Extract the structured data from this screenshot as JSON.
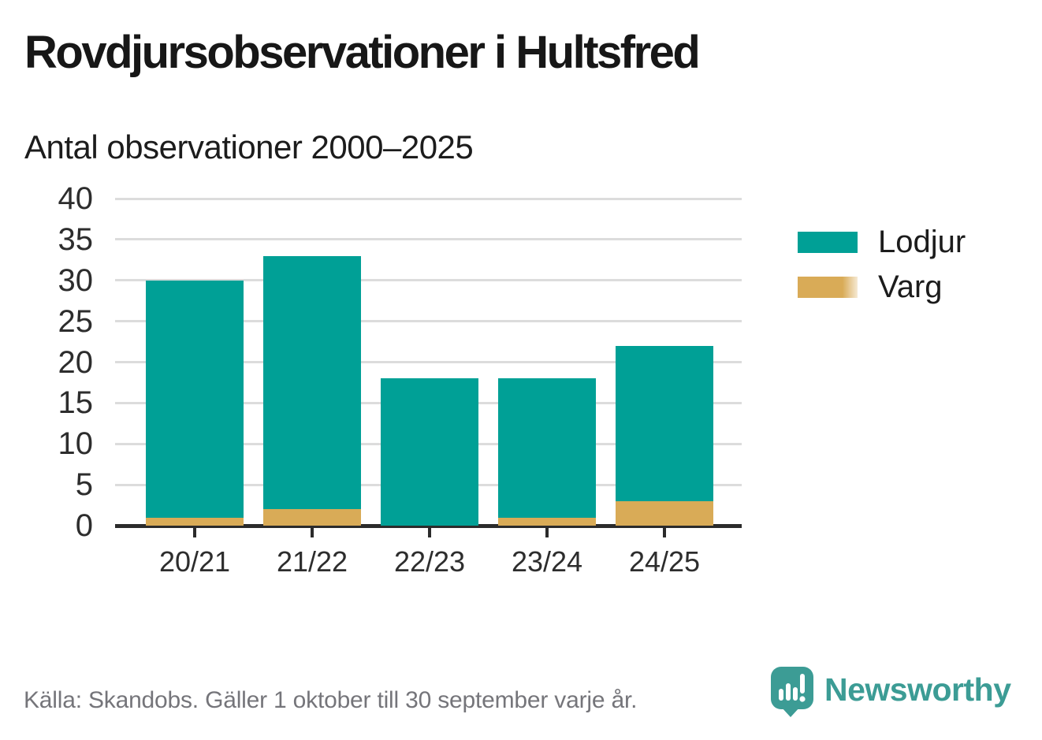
{
  "page": {
    "title": "Rovdjursobservationer i Hultsfred",
    "subtitle": "Antal observationer 2000–2025",
    "source": "Källa: Skandobs. Gäller 1 oktober till 30 september varje år.",
    "brand": "Newsworthy"
  },
  "colors": {
    "lodjur": "#00A096",
    "varg": "#D9AB57",
    "axis": "#2B2B2B",
    "grid": "#DCDCDC",
    "text": "#1C1C1C",
    "muted_text": "#75757A",
    "brand_teal": "#3C9C95"
  },
  "chart_data": {
    "type": "bar",
    "stacked": true,
    "title": "Rovdjursobservationer i Hultsfred",
    "subtitle": "Antal observationer 2000–2025",
    "categories": [
      "20/21",
      "21/22",
      "22/23",
      "23/24",
      "24/25"
    ],
    "series": [
      {
        "name": "Lodjur",
        "color": "#00A096",
        "values": [
          29,
          31,
          18,
          17,
          19
        ]
      },
      {
        "name": "Varg",
        "color": "#D9AB57",
        "values": [
          1,
          2,
          0,
          1,
          3
        ]
      }
    ],
    "stack_order_bottom_first": [
      "Varg",
      "Lodjur"
    ],
    "totals": [
      30,
      33,
      18,
      18,
      22
    ],
    "xlabel": "",
    "ylabel": "",
    "ylim": [
      0,
      40
    ],
    "ytick_step": 5,
    "grid": true,
    "legend_position": "right"
  }
}
